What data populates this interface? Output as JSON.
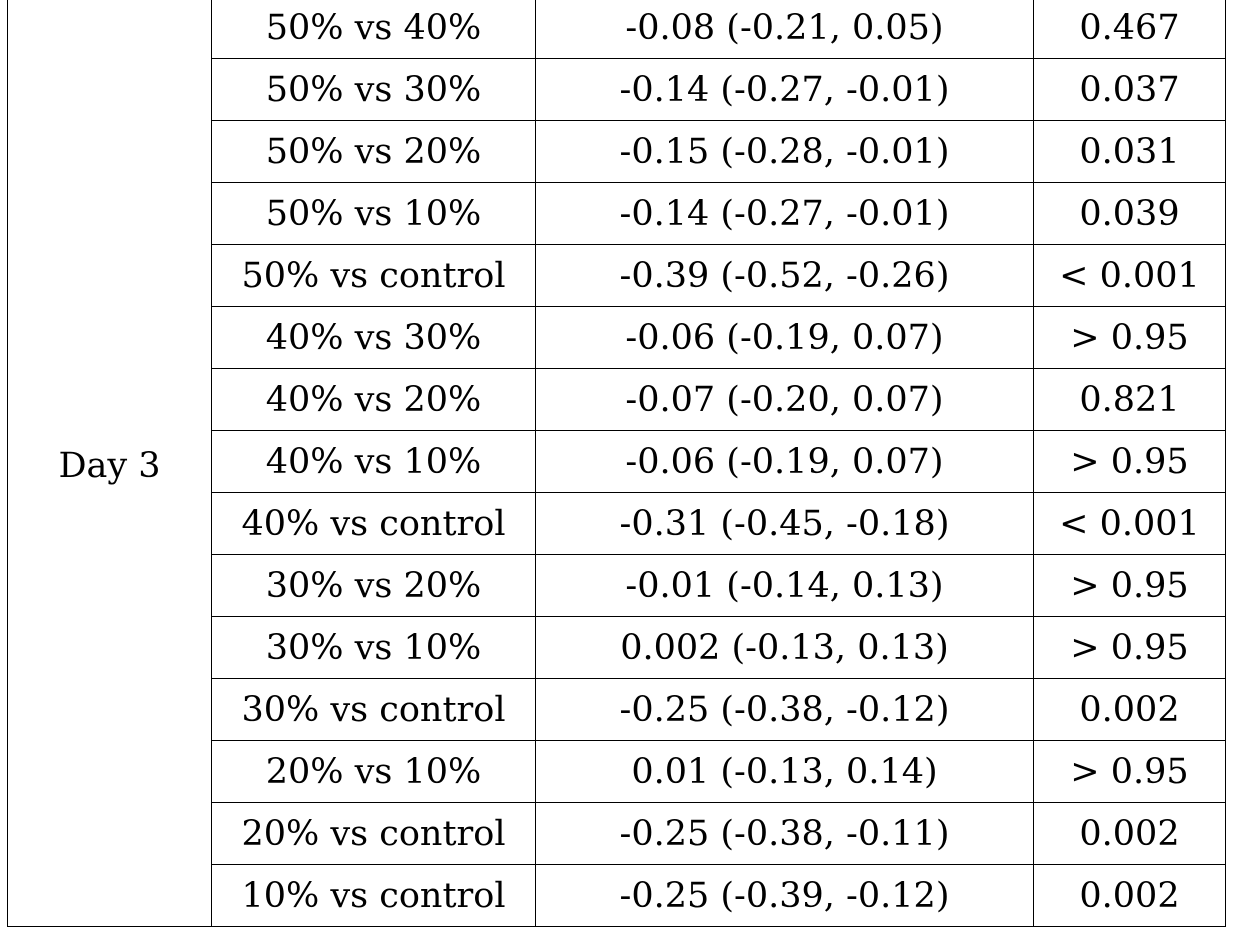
{
  "table": {
    "group_label": "Day 3",
    "rows": [
      {
        "comparison": "50% vs 40%",
        "estimate": "-0.08 (-0.21, 0.05)",
        "p_value": "0.467"
      },
      {
        "comparison": "50% vs 30%",
        "estimate": "-0.14 (-0.27, -0.01)",
        "p_value": "0.037"
      },
      {
        "comparison": "50% vs 20%",
        "estimate": "-0.15 (-0.28, -0.01)",
        "p_value": "0.031"
      },
      {
        "comparison": "50% vs 10%",
        "estimate": "-0.14 (-0.27, -0.01)",
        "p_value": "0.039"
      },
      {
        "comparison": "50% vs control",
        "estimate": "-0.39 (-0.52, -0.26)",
        "p_value": "< 0.001"
      },
      {
        "comparison": "40% vs 30%",
        "estimate": "-0.06 (-0.19, 0.07)",
        "p_value": "> 0.95"
      },
      {
        "comparison": "40% vs 20%",
        "estimate": "-0.07 (-0.20, 0.07)",
        "p_value": "0.821"
      },
      {
        "comparison": "40% vs 10%",
        "estimate": "-0.06 (-0.19, 0.07)",
        "p_value": "> 0.95"
      },
      {
        "comparison": "40% vs control",
        "estimate": "-0.31 (-0.45, -0.18)",
        "p_value": "< 0.001"
      },
      {
        "comparison": "30% vs 20%",
        "estimate": "-0.01 (-0.14, 0.13)",
        "p_value": "> 0.95"
      },
      {
        "comparison": "30% vs 10%",
        "estimate": "0.002 (-0.13, 0.13)",
        "p_value": "> 0.95"
      },
      {
        "comparison": "30% vs control",
        "estimate": "-0.25 (-0.38, -0.12)",
        "p_value": "0.002"
      },
      {
        "comparison": "20% vs 10%",
        "estimate": "0.01 (-0.13, 0.14)",
        "p_value": "> 0.95"
      },
      {
        "comparison": "20% vs control",
        "estimate": "-0.25 (-0.38, -0.11)",
        "p_value": "0.002"
      },
      {
        "comparison": "10% vs control",
        "estimate": "-0.25 (-0.39, -0.12)",
        "p_value": "0.002"
      }
    ]
  }
}
